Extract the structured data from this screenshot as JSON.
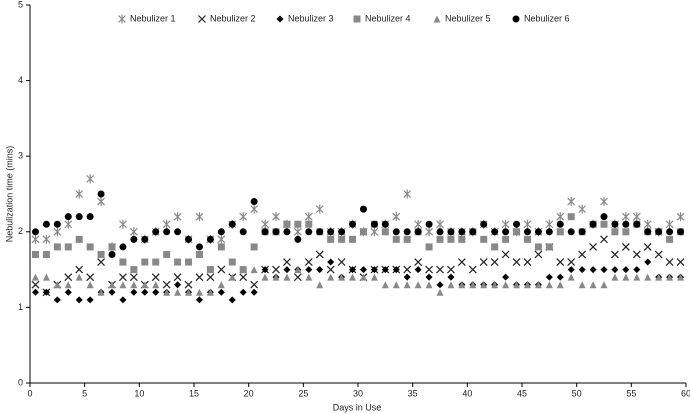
{
  "chart_data": {
    "type": "scatter",
    "xlabel": "Days in Use",
    "ylabel": "Nebulization time (mins)",
    "xlim": [
      0,
      60
    ],
    "xticks": [
      0,
      5,
      10,
      15,
      20,
      25,
      30,
      35,
      40,
      45,
      50,
      55,
      60
    ],
    "ylim": [
      0,
      5
    ],
    "yticks": [
      0,
      1,
      2,
      3,
      4,
      5
    ],
    "legend": "top",
    "x": [
      0.5,
      1.5,
      2.5,
      3.5,
      4.5,
      5.5,
      6.5,
      7.5,
      8.5,
      9.5,
      10.5,
      11.5,
      12.5,
      13.5,
      14.5,
      15.5,
      16.5,
      17.5,
      18.5,
      19.5,
      20.5,
      21.5,
      22.5,
      23.5,
      24.5,
      25.5,
      26.5,
      27.5,
      28.5,
      29.5,
      30.5,
      31.5,
      32.5,
      33.5,
      34.5,
      35.5,
      36.5,
      37.5,
      38.5,
      39.5,
      40.5,
      41.5,
      42.5,
      43.5,
      44.5,
      45.5,
      46.5,
      47.5,
      48.5,
      49.5,
      50.5,
      51.5,
      52.5,
      53.5,
      54.5,
      55.5,
      56.5,
      57.5,
      58.5,
      59.5
    ],
    "series": [
      {
        "name": "Nebulizer 1",
        "color": "#888888",
        "marker": "asterisk",
        "values": [
          1.9,
          1.9,
          2.0,
          2.1,
          2.5,
          2.7,
          2.4,
          1.8,
          2.1,
          2.0,
          1.9,
          2.0,
          2.1,
          2.2,
          1.9,
          2.2,
          1.9,
          1.9,
          2.1,
          2.2,
          2.3,
          2.1,
          2.2,
          2.1,
          2.0,
          2.2,
          2.3,
          2.0,
          2.0,
          2.1,
          2.0,
          2.0,
          2.1,
          2.2,
          2.5,
          2.1,
          2.0,
          2.1,
          2.0,
          2.0,
          2.0,
          2.1,
          2.0,
          2.1,
          2.0,
          2.1,
          2.0,
          2.1,
          2.2,
          2.4,
          2.3,
          2.1,
          2.4,
          2.1,
          2.2,
          2.2,
          2.1,
          2.0,
          2.1,
          2.2
        ]
      },
      {
        "name": "Nebulizer 2",
        "color": "#222222",
        "marker": "x",
        "values": [
          1.3,
          1.2,
          1.3,
          1.4,
          1.5,
          1.4,
          1.6,
          1.3,
          1.4,
          1.4,
          1.3,
          1.4,
          1.3,
          1.4,
          1.3,
          1.4,
          1.4,
          1.5,
          1.4,
          1.4,
          1.3,
          1.5,
          1.5,
          1.6,
          1.4,
          1.6,
          1.7,
          1.5,
          1.6,
          1.5,
          1.4,
          1.5,
          1.5,
          1.5,
          1.5,
          1.6,
          1.5,
          1.5,
          1.5,
          1.6,
          1.5,
          1.6,
          1.6,
          1.7,
          1.6,
          1.6,
          1.7,
          1.8,
          1.6,
          1.6,
          1.7,
          1.8,
          1.9,
          1.7,
          1.8,
          1.7,
          1.8,
          1.7,
          1.6,
          1.6
        ]
      },
      {
        "name": "Nebulizer 3",
        "color": "#000000",
        "marker": "diamond",
        "values": [
          1.2,
          1.2,
          1.1,
          1.2,
          1.1,
          1.1,
          1.2,
          1.2,
          1.1,
          1.2,
          1.2,
          1.2,
          1.2,
          1.3,
          1.2,
          1.1,
          1.2,
          1.2,
          1.1,
          1.2,
          1.2,
          1.5,
          1.4,
          1.5,
          1.5,
          1.5,
          1.5,
          1.6,
          1.4,
          1.5,
          1.5,
          1.5,
          1.5,
          1.5,
          1.4,
          1.5,
          1.4,
          1.3,
          1.4,
          1.3,
          1.3,
          1.3,
          1.3,
          1.4,
          1.3,
          1.3,
          1.3,
          1.4,
          1.4,
          1.5,
          1.5,
          1.5,
          1.5,
          1.5,
          1.5,
          1.5,
          1.6,
          1.4,
          1.4,
          1.4
        ]
      },
      {
        "name": "Nebulizer 4",
        "color": "#888888",
        "marker": "square",
        "values": [
          1.7,
          1.7,
          1.8,
          1.8,
          1.9,
          1.8,
          1.7,
          1.8,
          1.6,
          1.5,
          1.6,
          1.6,
          1.7,
          1.6,
          1.6,
          1.7,
          1.5,
          1.8,
          1.6,
          1.5,
          1.8,
          2.0,
          2.0,
          2.1,
          2.1,
          2.1,
          2.0,
          1.9,
          1.9,
          1.9,
          2.0,
          2.1,
          2.0,
          1.9,
          1.9,
          2.0,
          1.8,
          1.9,
          1.9,
          1.9,
          2.0,
          1.9,
          1.8,
          1.9,
          2.0,
          1.9,
          1.8,
          1.8,
          2.0,
          2.2,
          2.0,
          2.1,
          2.1,
          2.0,
          2.0,
          2.1,
          2.0,
          2.0,
          1.9,
          2.0
        ]
      },
      {
        "name": "Nebulizer 5",
        "color": "#888888",
        "marker": "triangle",
        "values": [
          1.4,
          1.4,
          1.3,
          1.3,
          1.4,
          1.3,
          1.2,
          1.3,
          1.3,
          1.3,
          1.3,
          1.3,
          1.2,
          1.2,
          1.2,
          1.2,
          1.2,
          1.3,
          1.4,
          1.5,
          1.5,
          1.4,
          1.4,
          1.4,
          1.5,
          1.4,
          1.3,
          1.4,
          1.4,
          1.4,
          1.4,
          1.4,
          1.3,
          1.3,
          1.3,
          1.3,
          1.3,
          1.2,
          1.3,
          1.3,
          1.3,
          1.3,
          1.3,
          1.3,
          1.3,
          1.3,
          1.3,
          1.3,
          1.3,
          1.4,
          1.3,
          1.3,
          1.3,
          1.4,
          1.4,
          1.4,
          1.4,
          1.4,
          1.4,
          1.4
        ]
      },
      {
        "name": "Nebulizer 6",
        "color": "#000000",
        "marker": "circle",
        "values": [
          2.0,
          2.1,
          2.1,
          2.2,
          2.2,
          2.2,
          2.5,
          1.7,
          1.8,
          1.9,
          1.9,
          2.0,
          2.0,
          2.0,
          1.9,
          1.8,
          1.9,
          2.0,
          2.1,
          2.0,
          2.4,
          2.0,
          2.0,
          2.0,
          1.9,
          2.0,
          2.0,
          2.0,
          2.0,
          2.1,
          2.3,
          2.1,
          2.1,
          2.0,
          2.0,
          2.0,
          2.1,
          2.0,
          2.0,
          2.0,
          2.0,
          2.1,
          2.0,
          2.0,
          2.1,
          2.0,
          2.0,
          2.0,
          2.1,
          2.0,
          2.0,
          2.1,
          2.2,
          2.1,
          2.1,
          2.1,
          2.0,
          2.0,
          2.0,
          2.0
        ]
      }
    ]
  }
}
